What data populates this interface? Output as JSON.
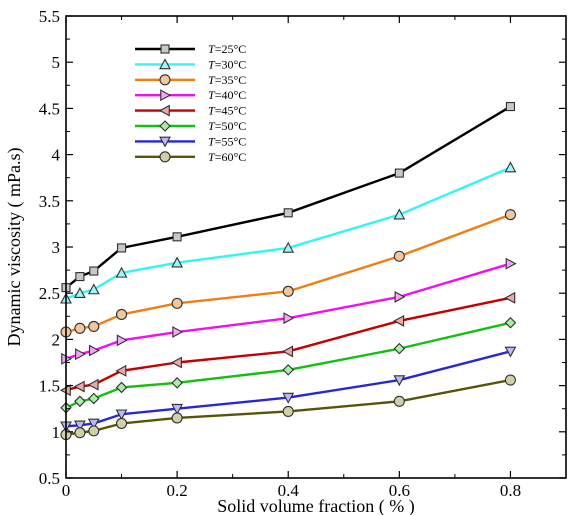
{
  "chart_data": {
    "type": "line",
    "xlabel": "Solid volume fraction ( % )",
    "ylabel": "Dynamic viscosity ( mPa.s)",
    "xlim": [
      0,
      0.9
    ],
    "ylim": [
      0.5,
      5.5
    ],
    "xticks": [
      "0",
      "0.2",
      "0.4",
      "0.6",
      "0.8"
    ],
    "xtick_values": [
      0,
      0.2,
      0.4,
      0.6,
      0.8
    ],
    "yticks": [
      "0.5",
      "1",
      "1.5",
      "2",
      "2.5",
      "3",
      "3.5",
      "4",
      "4.5",
      "5",
      "5.5"
    ],
    "ytick_values": [
      0.5,
      1,
      1.5,
      2,
      2.5,
      3,
      3.5,
      4,
      4.5,
      5,
      5.5
    ],
    "grid": false,
    "legend_position": "top-left",
    "legend_prefix": "T",
    "x": [
      0,
      0.025,
      0.05,
      0.1,
      0.2,
      0.4,
      0.6,
      0.8
    ],
    "series": [
      {
        "name": "=25°C",
        "marker": "square",
        "color": "#000000",
        "fill": "#c8c8c8",
        "values": [
          2.56,
          2.68,
          2.74,
          2.99,
          3.11,
          3.37,
          3.8,
          4.52
        ]
      },
      {
        "name": "=30°C",
        "marker": "triangle-up",
        "color": "#33f5f5",
        "fill": "#9ff7f7",
        "values": [
          2.44,
          2.5,
          2.54,
          2.72,
          2.83,
          2.99,
          3.35,
          3.86
        ]
      },
      {
        "name": "=35°C",
        "marker": "circle",
        "color": "#f07e12",
        "fill": "#f3c79e",
        "values": [
          2.08,
          2.12,
          2.14,
          2.27,
          2.39,
          2.52,
          2.9,
          3.35
        ]
      },
      {
        "name": "=40°C",
        "marker": "triangle-right",
        "color": "#ee11ee",
        "fill": "#f6a3f6",
        "values": [
          1.79,
          1.84,
          1.88,
          1.99,
          2.08,
          2.23,
          2.46,
          2.82
        ]
      },
      {
        "name": "=45°C",
        "marker": "triangle-left",
        "color": "#c40000",
        "fill": "#eaa9a9",
        "values": [
          1.45,
          1.49,
          1.51,
          1.66,
          1.75,
          1.87,
          2.2,
          2.45
        ]
      },
      {
        "name": "=50°C",
        "marker": "diamond",
        "color": "#12c012",
        "fill": "#a7efa7",
        "values": [
          1.26,
          1.33,
          1.36,
          1.48,
          1.53,
          1.67,
          1.9,
          2.18
        ]
      },
      {
        "name": "=55°C",
        "marker": "triangle-down",
        "color": "#2727d8",
        "fill": "#b9b9f5",
        "values": [
          1.06,
          1.07,
          1.09,
          1.19,
          1.25,
          1.37,
          1.56,
          1.87
        ]
      },
      {
        "name": "=60°C",
        "marker": "circle",
        "color": "#55550a",
        "fill": "#d0d0a7",
        "values": [
          0.97,
          0.99,
          1.01,
          1.09,
          1.15,
          1.22,
          1.33,
          1.56
        ]
      }
    ]
  }
}
